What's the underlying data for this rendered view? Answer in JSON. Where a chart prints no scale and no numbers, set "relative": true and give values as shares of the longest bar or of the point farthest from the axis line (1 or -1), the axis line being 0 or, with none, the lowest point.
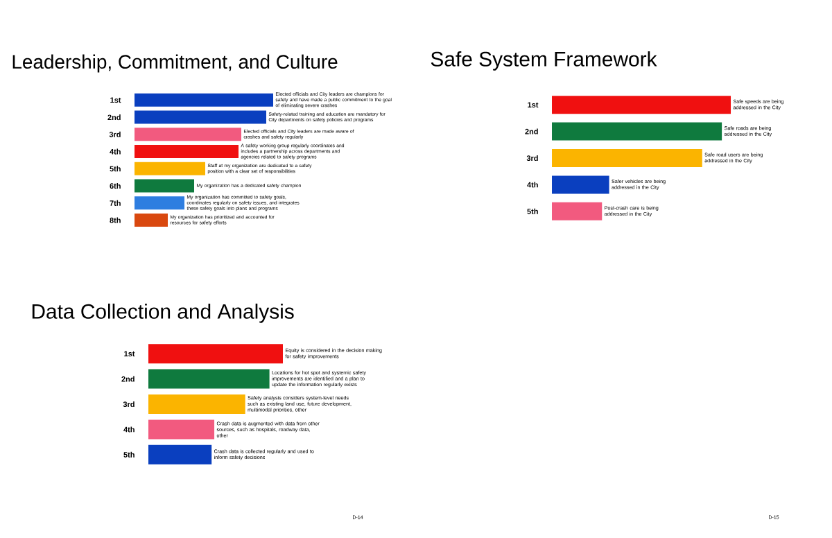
{
  "chart_data": [
    {
      "type": "bar",
      "orientation": "horizontal",
      "relative": true,
      "title": "Leadership, Commitment, and Culture",
      "categories": [
        "1st",
        "2nd",
        "3rd",
        "4th",
        "5th",
        "6th",
        "7th",
        "8th"
      ],
      "values": [
        1,
        0.95,
        0.77,
        0.75,
        0.51,
        0.43,
        0.36,
        0.24
      ],
      "colors": [
        "#0a3fbf",
        "#0a3fbf",
        "#f25a7f",
        "#f01010",
        "#fbb400",
        "#0f7a3e",
        "#2e7ee0",
        "#d9480f"
      ],
      "annotations": [
        {
          "text": "Elected officials and City leaders are champions for safety and have made a public commitment to the goal of eliminating severe crashes",
          "x": 1,
          "y": "1st"
        },
        {
          "text": "Safety-related training and education are mandatory for City departments on safety policies and programs",
          "x": 0.95,
          "y": "2nd"
        },
        {
          "text": "Elected officials and City leaders are made aware of crashes and safety regularly",
          "x": 0.77,
          "y": "3rd"
        },
        {
          "text": "A safety working group regularly coordinates and includes a partnership across departments and agencies related to safety programs",
          "x": 0.75,
          "y": "4th"
        },
        {
          "text": "Staff at my organization are dedicated to a safety position with a clear set of responsibilities",
          "x": 0.51,
          "y": "5th"
        },
        {
          "text": "My organization has a dedicated safety champion",
          "x": 0.43,
          "y": "6th"
        },
        {
          "text": "My organization has committed to safety goals, coordinates regularly on safety issues, and integrates these safety goals into plans and programs",
          "x": 0.36,
          "y": "7th"
        },
        {
          "text": "My organization has prioritized and accounted for resources for safety efforts",
          "x": 0.24,
          "y": "8th"
        }
      ]
    },
    {
      "type": "bar",
      "orientation": "horizontal",
      "relative": true,
      "title": "Safe System Framework",
      "categories": [
        "1st",
        "2nd",
        "3rd",
        "4th",
        "5th"
      ],
      "values": [
        1,
        0.95,
        0.84,
        0.32,
        0.28
      ],
      "colors": [
        "#f01010",
        "#0f7a3e",
        "#fbb400",
        "#0a3fbf",
        "#f25a7f"
      ],
      "annotations": [
        {
          "text": "Safe speeds are being addressed in the City",
          "x": 1,
          "y": "1st"
        },
        {
          "text": "Safe roads are being addressed in the City",
          "x": 0.95,
          "y": "2nd"
        },
        {
          "text": "Safe road users are being addressed in the City",
          "x": 0.84,
          "y": "3rd"
        },
        {
          "text": "Safer vehicles are being addressed in the City",
          "x": 0.32,
          "y": "4th"
        },
        {
          "text": "Post-crash care is being addressed in the City",
          "x": 0.28,
          "y": "5th"
        },
        "D-15"
      ]
    },
    {
      "type": "bar",
      "orientation": "horizontal",
      "relative": true,
      "title": "Data Collection and Analysis",
      "categories": [
        "1st",
        "2nd",
        "3rd",
        "4th",
        "5th"
      ],
      "values": [
        1,
        0.9,
        0.72,
        0.49,
        0.47
      ],
      "colors": [
        "#f01010",
        "#0f7a3e",
        "#fbb400",
        "#f25a7f",
        "#0a3fbf"
      ],
      "annotations": [
        {
          "text": "Equity is considered in the decision making for safety improvements",
          "x": 1,
          "y": "1st"
        },
        {
          "text": "Locations for hot spot and systemic safety improvements are identified and a plan to update the information regularly exists",
          "x": 0.9,
          "y": "2nd"
        },
        {
          "text": "Safety analysis considers system-level needs such as existing land use, future development, multimodal priorities, other",
          "x": 0.72,
          "y": "3rd"
        },
        {
          "text": "Crash data is augmented with data from other sources, such as hospitals, roadway data, other",
          "x": 0.49,
          "y": "4th"
        },
        {
          "text": "Crash data is collected regularly and used to inform safety decisions",
          "x": 0.47,
          "y": "5th"
        },
        "D-14"
      ]
    }
  ]
}
